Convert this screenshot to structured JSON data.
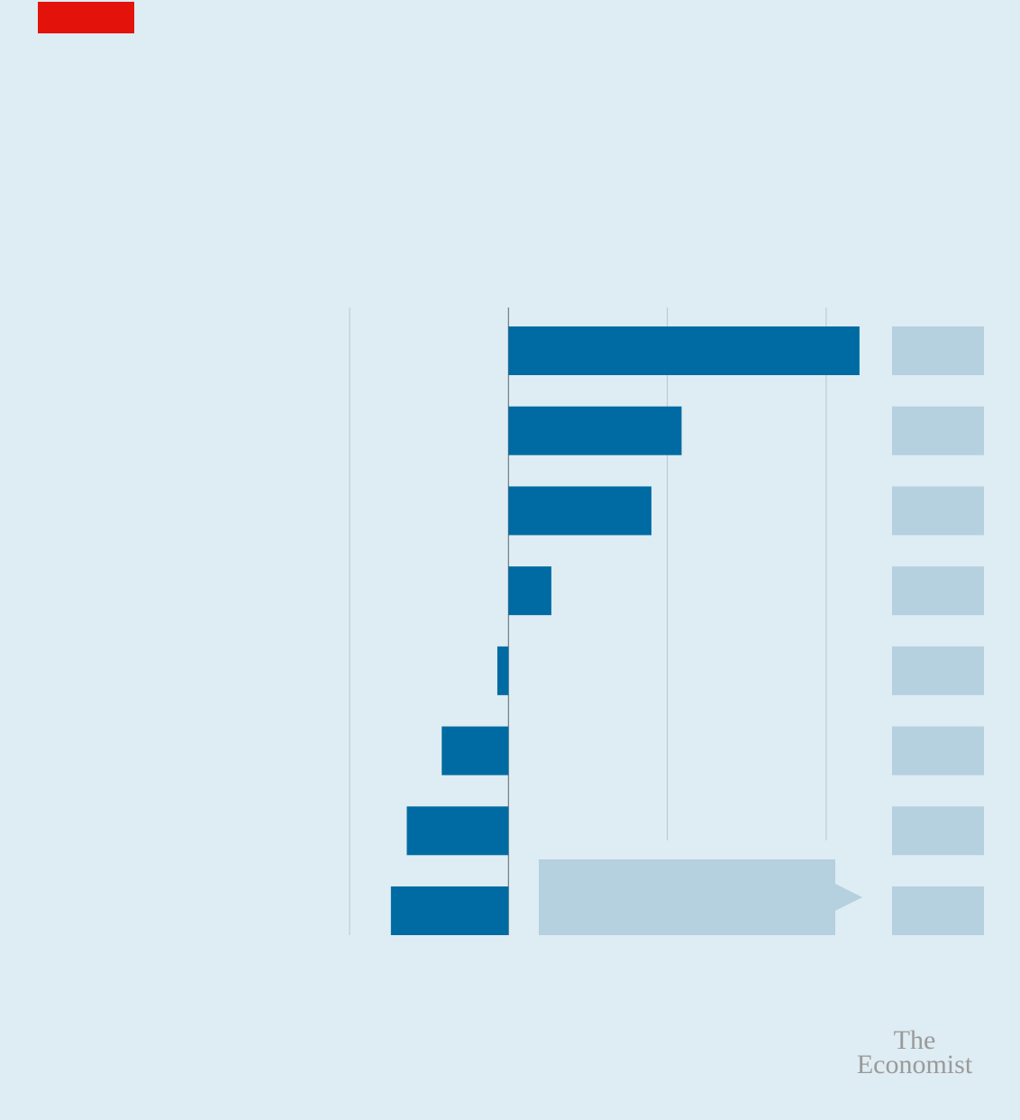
{
  "brand": [
    "The",
    "Economist"
  ],
  "chart_data": {
    "type": "bar",
    "orientation": "horizontal",
    "categories": [
      null,
      null,
      null,
      null,
      null,
      null,
      null,
      null
    ],
    "values": [
      2.21,
      1.09,
      0.9,
      0.27,
      -0.07,
      -0.42,
      -0.64,
      -0.74
    ],
    "color": "#006ba2",
    "xlim": [
      -1,
      2.5
    ],
    "xticks": [
      -1,
      0,
      1,
      2
    ],
    "grid": true
  }
}
